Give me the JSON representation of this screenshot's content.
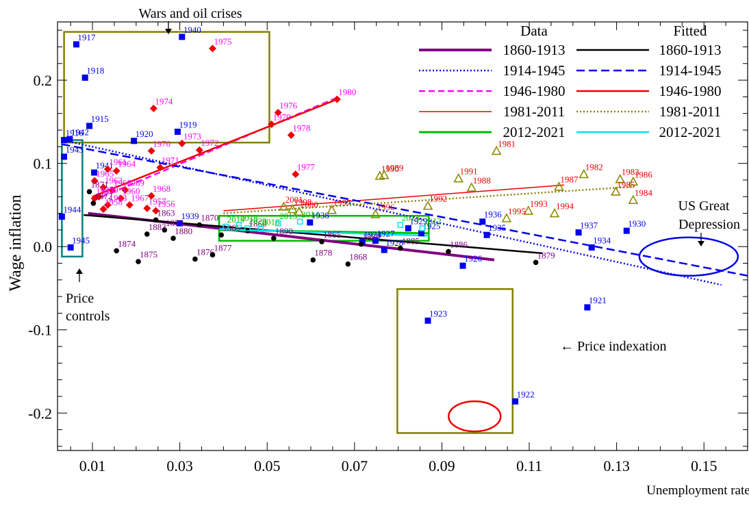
{
  "chart_data": {
    "type": "scatter",
    "xlabel": "Unemployment rate",
    "ylabel": "Wage inflation",
    "xlim": [
      0.002,
      0.16
    ],
    "ylim": [
      -0.245,
      0.27
    ],
    "xticks": [
      0.01,
      0.03,
      0.05,
      0.07,
      0.09,
      0.11,
      0.13,
      0.15
    ],
    "xtick_labels": [
      "0.01",
      "0.03",
      "0.05",
      "0.07",
      "0.09",
      "0.11",
      "0.13",
      "0.15"
    ],
    "yticks": [
      -0.2,
      -0.1,
      0.0,
      0.1,
      0.2
    ],
    "ytick_labels": [
      "-0.2",
      "-0.1",
      "0.0",
      "0.1",
      "0.2"
    ],
    "legend": {
      "data_title": "Data",
      "fitted_title": "Fitted",
      "data_entries": [
        "1860-1913",
        "1914-1945",
        "1946-1980",
        "1981-2011",
        "2012-2021"
      ],
      "fitted_entries": [
        "1860-1913",
        "1914-1945",
        "1946-1980",
        "1981-2011",
        "2012-2021"
      ]
    },
    "colors": {
      "s1860": "#800080",
      "s1914": "#0000ee",
      "s1946": "#ff00ff",
      "s1981": "#ee0000",
      "s2012": "#00bb00",
      "fit1860": "#000000",
      "fit1914": "#0000ee",
      "fit1946": "#ee0000",
      "fit1981": "#8b7b00",
      "fit2012": "#00e5ee",
      "box": "#808000",
      "boxTeal": "#008080",
      "markerRed": "#ee0000",
      "markerOlive": "#8b8b00",
      "markerBlack": "#000000"
    },
    "annotations": {
      "wars": "Wars and oil crises",
      "price_controls_1": "Price",
      "price_controls_2": "controls",
      "indexation": "← Price indexation",
      "depression_1": "US Great",
      "depression_2": "Depression"
    },
    "series": [
      {
        "name": "1914-1945",
        "points": [
          {
            "x": 0.0063,
            "y": 0.243,
            "label": "1917"
          },
          {
            "x": 0.0083,
            "y": 0.203,
            "label": "1918"
          },
          {
            "x": 0.0093,
            "y": 0.145,
            "label": "1915"
          },
          {
            "x": 0.0035,
            "y": 0.128,
            "label": "1916"
          },
          {
            "x": 0.0035,
            "y": 0.108,
            "label": "1943"
          },
          {
            "x": 0.0048,
            "y": 0.129,
            "label": "1942"
          },
          {
            "x": 0.003,
            "y": 0.036,
            "label": "1944"
          },
          {
            "x": 0.005,
            "y": -0.001,
            "label": "1945"
          },
          {
            "x": 0.0305,
            "y": 0.252,
            "label": "1940"
          },
          {
            "x": 0.0195,
            "y": 0.127,
            "label": "1920"
          },
          {
            "x": 0.0295,
            "y": 0.138,
            "label": "1919"
          },
          {
            "x": 0.0104,
            "y": 0.089,
            "label": "1941"
          },
          {
            "x": 0.03,
            "y": 0.028,
            "label": "1939"
          },
          {
            "x": 0.0598,
            "y": 0.029,
            "label": "1938"
          },
          {
            "x": 0.0748,
            "y": 0.007,
            "label": "1927"
          },
          {
            "x": 0.0718,
            "y": 0.006,
            "label": "1924"
          },
          {
            "x": 0.0768,
            "y": -0.004,
            "label": "1928"
          },
          {
            "x": 0.0823,
            "y": 0.022,
            "label": "1929"
          },
          {
            "x": 0.0853,
            "y": 0.016,
            "label": "1925"
          },
          {
            "x": 0.0993,
            "y": 0.03,
            "label": "1936"
          },
          {
            "x": 0.1003,
            "y": 0.014,
            "label": "1935"
          },
          {
            "x": 0.0948,
            "y": -0.023,
            "label": "1926"
          },
          {
            "x": 0.1213,
            "y": 0.017,
            "label": "1937"
          },
          {
            "x": 0.1243,
            "y": -0.001,
            "label": "1934"
          },
          {
            "x": 0.1323,
            "y": 0.019,
            "label": "1930"
          },
          {
            "x": 0.0868,
            "y": -0.089,
            "label": "1923"
          },
          {
            "x": 0.1233,
            "y": -0.073,
            "label": "1921"
          },
          {
            "x": 0.1068,
            "y": -0.186,
            "label": "1922"
          }
        ]
      },
      {
        "name": "1946-1980",
        "points": [
          {
            "x": 0.0375,
            "y": 0.238,
            "label": "1975"
          },
          {
            "x": 0.066,
            "y": 0.177,
            "label": "1980"
          },
          {
            "x": 0.024,
            "y": 0.166,
            "label": "1974"
          },
          {
            "x": 0.0525,
            "y": 0.161,
            "label": "1976"
          },
          {
            "x": 0.051,
            "y": 0.147,
            "label": "1979"
          },
          {
            "x": 0.0555,
            "y": 0.134,
            "label": "1978"
          },
          {
            "x": 0.0305,
            "y": 0.124,
            "label": "1973"
          },
          {
            "x": 0.0345,
            "y": 0.116,
            "label": "1972"
          },
          {
            "x": 0.0235,
            "y": 0.115,
            "label": "1970"
          },
          {
            "x": 0.0565,
            "y": 0.087,
            "label": "1977"
          },
          {
            "x": 0.0255,
            "y": 0.095,
            "label": "1971"
          },
          {
            "x": 0.0135,
            "y": 0.093,
            "label": "1961"
          },
          {
            "x": 0.0155,
            "y": 0.091,
            "label": "1964"
          },
          {
            "x": 0.0105,
            "y": 0.079,
            "label": "1965"
          },
          {
            "x": 0.0125,
            "y": 0.071,
            "label": "1962"
          },
          {
            "x": 0.0145,
            "y": 0.068,
            "label": "1966"
          },
          {
            "x": 0.0175,
            "y": 0.068,
            "label": "1969"
          },
          {
            "x": 0.0235,
            "y": 0.061,
            "label": "1968"
          },
          {
            "x": 0.0165,
            "y": 0.058,
            "label": "1960"
          },
          {
            "x": 0.0115,
            "y": 0.06,
            "label": "1959"
          },
          {
            "x": 0.0135,
            "y": 0.05,
            "label": "1963"
          },
          {
            "x": 0.0185,
            "y": 0.05,
            "label": "1967"
          },
          {
            "x": 0.0225,
            "y": 0.046,
            "label": "1957"
          },
          {
            "x": 0.0125,
            "y": 0.045,
            "label": "1958"
          },
          {
            "x": 0.0245,
            "y": 0.043,
            "label": "1956"
          },
          {
            "x": 0.0105,
            "y": 0.058,
            "label": "1947"
          }
        ]
      },
      {
        "name": "1981-2011",
        "points": [
          {
            "x": 0.1025,
            "y": 0.115,
            "label": "1981"
          },
          {
            "x": 0.1225,
            "y": 0.087,
            "label": "1982"
          },
          {
            "x": 0.0758,
            "y": 0.085,
            "label": "1990"
          },
          {
            "x": 0.0768,
            "y": 0.086,
            "label": "1989"
          },
          {
            "x": 0.0938,
            "y": 0.082,
            "label": "1991"
          },
          {
            "x": 0.0968,
            "y": 0.071,
            "label": "1988"
          },
          {
            "x": 0.1168,
            "y": 0.072,
            "label": "1987"
          },
          {
            "x": 0.1308,
            "y": 0.081,
            "label": "1983"
          },
          {
            "x": 0.1338,
            "y": 0.078,
            "label": "1986"
          },
          {
            "x": 0.1298,
            "y": 0.066,
            "label": "1985"
          },
          {
            "x": 0.1338,
            "y": 0.056,
            "label": "1984"
          },
          {
            "x": 0.0868,
            "y": 0.049,
            "label": "1992"
          },
          {
            "x": 0.1098,
            "y": 0.043,
            "label": "1993"
          },
          {
            "x": 0.1158,
            "y": 0.04,
            "label": "1994"
          },
          {
            "x": 0.1048,
            "y": 0.034,
            "label": "1995"
          },
          {
            "x": 0.0748,
            "y": 0.039,
            "label": "1996"
          },
          {
            "x": 0.0648,
            "y": 0.044,
            "label": "1997"
          },
          {
            "x": 0.0558,
            "y": 0.045,
            "label": "1998"
          },
          {
            "x": 0.0538,
            "y": 0.048,
            "label": "2001"
          },
          {
            "x": 0.0573,
            "y": 0.042,
            "label": "2000"
          }
        ]
      },
      {
        "name": "1860-1913",
        "points": [
          {
            "x": 0.0093,
            "y": 0.066,
            "label": "1871"
          },
          {
            "x": 0.0102,
            "y": 0.052,
            "label": "1872"
          },
          {
            "x": 0.0155,
            "y": -0.005,
            "label": "1874"
          },
          {
            "x": 0.0205,
            "y": -0.018,
            "label": "1875"
          },
          {
            "x": 0.0335,
            "y": -0.015,
            "label": "1876"
          },
          {
            "x": 0.0375,
            "y": -0.01,
            "label": "1877"
          },
          {
            "x": 0.0605,
            "y": -0.016,
            "label": "1878"
          },
          {
            "x": 0.0685,
            "y": -0.021,
            "label": "1868"
          },
          {
            "x": 0.1115,
            "y": -0.019,
            "label": "1879"
          },
          {
            "x": 0.0245,
            "y": 0.032,
            "label": "1863"
          },
          {
            "x": 0.0345,
            "y": 0.026,
            "label": "1870"
          },
          {
            "x": 0.0455,
            "y": 0.019,
            "label": "1860"
          },
          {
            "x": 0.0265,
            "y": 0.02,
            "label": "1873"
          },
          {
            "x": 0.0395,
            "y": 0.014,
            "label": "1866"
          },
          {
            "x": 0.0515,
            "y": 0.01,
            "label": "1890"
          },
          {
            "x": 0.0625,
            "y": 0.006,
            "label": "1865"
          },
          {
            "x": 0.0715,
            "y": 0.003,
            "label": "1889"
          },
          {
            "x": 0.0805,
            "y": -0.002,
            "label": "1885"
          },
          {
            "x": 0.0915,
            "y": -0.006,
            "label": "1886"
          },
          {
            "x": 0.0225,
            "y": 0.015,
            "label": "1883"
          },
          {
            "x": 0.0285,
            "y": 0.01,
            "label": "1880"
          }
        ]
      },
      {
        "name": "2012-2021",
        "points": [
          {
            "x": 0.0405,
            "y": 0.024,
            "label": "2019"
          },
          {
            "x": 0.0435,
            "y": 0.026,
            "label": "2018"
          },
          {
            "x": 0.0455,
            "y": 0.022,
            "label": "2020"
          },
          {
            "x": 0.0485,
            "y": 0.021,
            "label": "2016"
          },
          {
            "x": 0.0525,
            "y": 0.028,
            "label": "2015"
          },
          {
            "x": 0.0575,
            "y": 0.03,
            "label": "2014"
          },
          {
            "x": 0.0805,
            "y": 0.026,
            "label": "2013"
          },
          {
            "x": 0.0855,
            "y": 0.022,
            "label": "2012"
          }
        ]
      }
    ],
    "fitted_lines": [
      {
        "name": "1860-1913",
        "from": [
          0.008,
          0.038
        ],
        "to": [
          0.113,
          -0.008
        ]
      },
      {
        "name": "1914-1945",
        "from": [
          0.003,
          0.123
        ],
        "to": [
          0.16,
          -0.035
        ]
      },
      {
        "name": "1946-1980",
        "from": [
          0.01,
          0.06
        ],
        "to": [
          0.066,
          0.177
        ]
      },
      {
        "name": "1981-2011",
        "from": [
          0.04,
          0.04
        ],
        "to": [
          0.134,
          0.072
        ]
      },
      {
        "name": "2012-2021",
        "from": [
          0.039,
          0.021
        ],
        "to": [
          0.087,
          0.013
        ]
      }
    ],
    "data_lines": [
      {
        "name": "1860-1913",
        "from": [
          0.009,
          0.04
        ],
        "to": [
          0.102,
          -0.016
        ]
      },
      {
        "name": "1914-1945",
        "from": [
          0.003,
          0.128
        ],
        "to": [
          0.154,
          -0.046
        ]
      },
      {
        "name": "1946-1980",
        "from": [
          0.01,
          0.055
        ],
        "to": [
          0.066,
          0.179
        ]
      },
      {
        "name": "1981-2011",
        "from": [
          0.04,
          0.043
        ],
        "to": [
          0.118,
          0.074
        ]
      },
      {
        "name": "2012-2021",
        "from": [
          0.039,
          0.02
        ],
        "to": [
          0.087,
          0.016
        ]
      }
    ]
  }
}
